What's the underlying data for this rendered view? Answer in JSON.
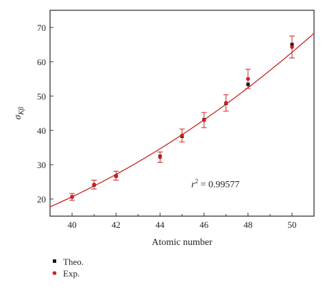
{
  "chart_data": {
    "type": "scatter",
    "xlabel": "Atomic number",
    "ylabel": "σKβ",
    "ylabel_main": "σ",
    "ylabel_sub": "Kβ",
    "xlim": [
      39,
      51
    ],
    "ylim": [
      15,
      75
    ],
    "x_ticks": [
      40,
      42,
      44,
      46,
      48,
      50
    ],
    "y_ticks": [
      20,
      30,
      40,
      50,
      60,
      70
    ],
    "grid": false,
    "legend_placement": "bottom-left, below plot",
    "annotation": {
      "variable": "r",
      "exponent": "2",
      "value": " = 0.99577"
    },
    "series": [
      {
        "name": "Theo.",
        "marker": "square",
        "color": "#111111",
        "x": [
          40,
          41,
          42,
          44,
          45,
          46,
          47,
          48,
          50
        ],
        "y": [
          20.6,
          24.1,
          26.7,
          32.4,
          38.3,
          43.1,
          47.9,
          53.4,
          65.0
        ]
      },
      {
        "name": "Exp.",
        "marker": "circle",
        "color": "#cc1f1f",
        "x": [
          40,
          41,
          42,
          44,
          45,
          46,
          47,
          48,
          50
        ],
        "y": [
          20.6,
          24.2,
          26.8,
          32.2,
          38.5,
          43.0,
          48.0,
          55.0,
          64.3
        ],
        "error": [
          1.0,
          1.3,
          1.3,
          1.5,
          1.9,
          2.2,
          2.4,
          2.8,
          3.2
        ]
      }
    ],
    "fit_curve": {
      "color": "#cc1f1f",
      "coefficients": [
        20.64,
        3.025,
        0.1188
      ],
      "reference_x": 40
    }
  },
  "colors": {
    "axis": "#333333",
    "curve": "#cc1f1f",
    "theo": "#111111",
    "exp": "#cc1f1f"
  }
}
